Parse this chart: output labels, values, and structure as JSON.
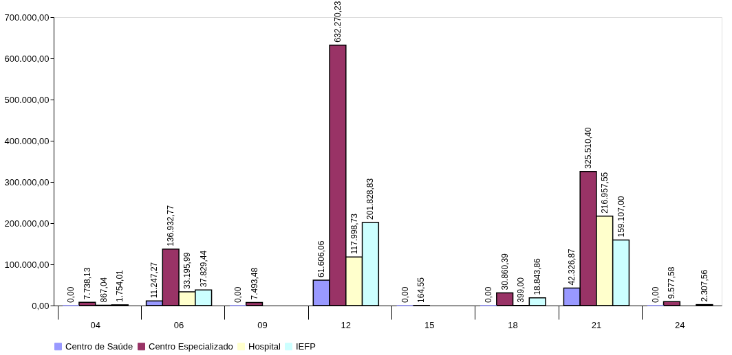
{
  "chart_data": {
    "type": "bar",
    "categories": [
      "04",
      "06",
      "09",
      "12",
      "15",
      "18",
      "21",
      "24"
    ],
    "series": [
      {
        "name": "Centro de Saúde",
        "color": "#9999ff",
        "values": [
          0,
          11247.27,
          0,
          61606.06,
          0,
          0,
          42326.87,
          0
        ],
        "value_labels": [
          "0,00",
          "11.247,27",
          "0,00",
          "61.606,06",
          "0,00",
          "0,00",
          "42.326,87",
          "0,00"
        ]
      },
      {
        "name": "Centro Especializado",
        "color": "#993366",
        "values": [
          7738.13,
          136932.77,
          7493.48,
          632270.23,
          164.55,
          30860.39,
          325510.4,
          9577.58
        ],
        "value_labels": [
          "7.738,13",
          "136.932,77",
          "7.493,48",
          "632.270,23",
          "164,55",
          "30.860,39",
          "325.510,40",
          "9.577,58"
        ]
      },
      {
        "name": "Hospital",
        "color": "#ffffcc",
        "values": [
          867.04,
          33195.99,
          null,
          117998.73,
          null,
          399.0,
          216957.55,
          null
        ],
        "value_labels": [
          "867,04",
          "33.195,99",
          null,
          "117.998,73",
          null,
          "399,00",
          "216.957,55",
          null
        ]
      },
      {
        "name": "IEFP",
        "color": "#ccffff",
        "values": [
          1754.01,
          37829.44,
          null,
          201828.83,
          null,
          18843.86,
          159107.0,
          2307.56
        ],
        "value_labels": [
          "1.754,01",
          "37.829,44",
          null,
          "201.828,83",
          null,
          "18.843,86",
          "159.107,00",
          "2.307,56"
        ]
      }
    ],
    "ylim": [
      0,
      700000
    ],
    "yticks": [
      {
        "value": 0,
        "label": "0,00"
      },
      {
        "value": 100000,
        "label": "100.000,00"
      },
      {
        "value": 200000,
        "label": "200.000,00"
      },
      {
        "value": 300000,
        "label": "300.000,00"
      },
      {
        "value": 400000,
        "label": "400.000,00"
      },
      {
        "value": 500000,
        "label": "500.000,00"
      },
      {
        "value": 600000,
        "label": "600.000,00"
      },
      {
        "value": 700000,
        "label": "700.000,00"
      }
    ],
    "grid": false,
    "legend": "bottom"
  }
}
